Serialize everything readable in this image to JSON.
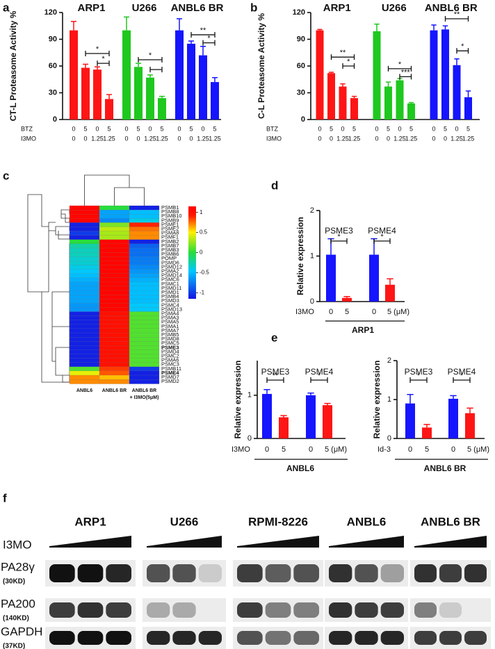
{
  "chart_data": [
    {
      "panel": "a",
      "type": "bar",
      "ylabel": "CT-L Proteasome Activity %",
      "ylim": [
        0,
        120
      ],
      "yticks": [
        0,
        30,
        60,
        90,
        120
      ],
      "series": [
        {
          "name": "ARP1",
          "color": "#ff1515",
          "values": [
            100,
            58,
            56,
            23
          ],
          "errors": [
            10,
            4,
            3,
            5
          ]
        },
        {
          "name": "U266",
          "color": "#1ec81e",
          "values": [
            100,
            59,
            47,
            24
          ],
          "errors": [
            15,
            4,
            3,
            2
          ]
        },
        {
          "name": "ANBL6 BR",
          "color": "#1515ff",
          "values": [
            100,
            85,
            72,
            42
          ],
          "errors": [
            13,
            3,
            10,
            5
          ]
        }
      ],
      "rows": [
        {
          "label": "BTZ",
          "values": [
            0,
            5,
            0,
            5,
            0,
            5,
            0,
            5,
            0,
            5,
            0,
            5
          ]
        },
        {
          "label": "I3MO",
          "values": [
            0,
            0,
            1.25,
            1.25,
            0,
            0,
            1.25,
            1.25,
            0,
            0,
            1.25,
            1.25
          ]
        }
      ],
      "brackets": [
        {
          "series": 0,
          "from": 1,
          "to": 3,
          "y": 74,
          "label": "*"
        },
        {
          "series": 0,
          "from": 2,
          "to": 3,
          "y": 63,
          "label": "*"
        },
        {
          "series": 1,
          "from": 1,
          "to": 3,
          "y": 67,
          "label": "*"
        },
        {
          "series": 1,
          "from": 2,
          "to": 3,
          "y": 56
        },
        {
          "series": 2,
          "from": 1,
          "to": 3,
          "y": 95,
          "label": "**"
        },
        {
          "series": 2,
          "from": 2,
          "to": 3,
          "y": 86,
          "label": "*"
        }
      ]
    },
    {
      "panel": "b",
      "type": "bar",
      "ylabel": "C-L Proteasome Activity %",
      "ylim": [
        0,
        120
      ],
      "yticks": [
        0,
        30,
        60,
        90,
        120
      ],
      "series": [
        {
          "name": "ARP1",
          "color": "#ff1515",
          "values": [
            100,
            52,
            37,
            24
          ],
          "errors": [
            1,
            1,
            3,
            2
          ]
        },
        {
          "name": "U266",
          "color": "#1ec81e",
          "values": [
            99,
            37,
            44,
            18
          ],
          "errors": [
            8,
            5,
            2,
            1
          ]
        },
        {
          "name": "ANBL6 BR",
          "color": "#1515ff",
          "values": [
            100,
            101,
            61,
            25
          ],
          "errors": [
            6,
            4,
            7,
            7
          ]
        }
      ],
      "rows": [
        {
          "label": "BTZ",
          "values": [
            0,
            5,
            0,
            5,
            0,
            5,
            0,
            5,
            0,
            5,
            0,
            5
          ]
        },
        {
          "label": "I3MO",
          "values": [
            0,
            0,
            1.25,
            1.25,
            0,
            0,
            1.25,
            1.25,
            0,
            0,
            1.25,
            1.25
          ]
        }
      ],
      "brackets": [
        {
          "series": 0,
          "from": 1,
          "to": 3,
          "y": 70,
          "label": "**"
        },
        {
          "series": 0,
          "from": 2,
          "to": 3,
          "y": 60,
          "label": "*"
        },
        {
          "series": 1,
          "from": 1,
          "to": 3,
          "y": 57,
          "label": "*"
        },
        {
          "series": 1,
          "from": 2,
          "to": 3,
          "y": 48,
          "label": "***"
        },
        {
          "series": 2,
          "from": 1,
          "to": 3,
          "y": 113,
          "label": "**"
        },
        {
          "series": 2,
          "from": 2,
          "to": 3,
          "y": 77,
          "label": "*"
        }
      ]
    },
    {
      "panel": "c",
      "type": "heatmap",
      "clim": [
        -1.15,
        1.15
      ],
      "cticks": [
        1,
        0.5,
        0,
        -0.5,
        -1
      ],
      "columns": [
        [
          "ANBL6"
        ],
        [
          "ANBL6 BR"
        ],
        [
          "ANBL6 BR",
          "+ I3MO(5μM)"
        ]
      ],
      "rows": [
        "PSMB1",
        "PSMB8",
        "PSMB10",
        "PSMB9",
        "PSME1",
        "PSME2",
        "PSMA8",
        "PSMF1",
        "PSMB2",
        "PSMB7",
        "PSMB3",
        "PSMB6",
        "POMP",
        "PSMD6",
        "PSMD12",
        "PSMA2",
        "PSMD14",
        "PSMC6",
        "PSMC1",
        "PSMD11",
        "PSMD1",
        "PSMB4",
        "PSMD3",
        "PSMC4",
        "PSMD13",
        "PSMA4",
        "PSMA3",
        "PSMA5",
        "PSMA1",
        "PSMA7",
        "PSMB5",
        "PSMD8",
        "PSMC5",
        "PSME3",
        "PSMD4",
        "PSMC2",
        "PSMA6",
        "PSMC3",
        "PSMB11",
        "PSME4",
        "PSMD7",
        "PSMD2"
      ],
      "bold_rows": [
        33,
        39
      ],
      "values": [
        [
          1.1,
          0,
          -1.1
        ],
        [
          1.1,
          -0.6,
          -0.5
        ],
        [
          1.1,
          -0.6,
          -0.5
        ],
        [
          1.1,
          -0.7,
          -0.4
        ],
        [
          -1.1,
          0.2,
          0.9
        ],
        [
          -1.1,
          0.35,
          0.75
        ],
        [
          -1.0,
          0.3,
          0.7
        ],
        [
          -1.1,
          0.3,
          0.7
        ],
        [
          0,
          1.1,
          -1.1
        ],
        [
          -0.25,
          1.1,
          -0.85
        ],
        [
          -0.3,
          1.1,
          -0.8
        ],
        [
          -0.3,
          1.1,
          -0.8
        ],
        [
          -0.35,
          1.1,
          -0.75
        ],
        [
          -0.35,
          1.1,
          -0.75
        ],
        [
          -0.4,
          1.1,
          -0.7
        ],
        [
          -0.45,
          1.1,
          -0.65
        ],
        [
          -0.5,
          1.1,
          -0.6
        ],
        [
          -0.55,
          1.1,
          -0.55
        ],
        [
          -0.6,
          1.1,
          -0.5
        ],
        [
          -0.6,
          1.1,
          -0.5
        ],
        [
          -0.6,
          1.1,
          -0.5
        ],
        [
          -0.6,
          1.1,
          -0.5
        ],
        [
          -0.6,
          1.1,
          -0.5
        ],
        [
          -0.65,
          1.1,
          -0.45
        ],
        [
          -0.65,
          1.1,
          -0.45
        ],
        [
          -1.1,
          1.0,
          0.1
        ],
        [
          -1.1,
          1.0,
          0.1
        ],
        [
          -1.1,
          1.0,
          0.1
        ],
        [
          -1.1,
          1.0,
          0.1
        ],
        [
          -1.1,
          1.0,
          0.1
        ],
        [
          -1.1,
          1.0,
          0.1
        ],
        [
          -1.1,
          1.0,
          0.1
        ],
        [
          -1.1,
          1.0,
          0.1
        ],
        [
          -1.1,
          1.0,
          0.1
        ],
        [
          -1.1,
          1.0,
          0.1
        ],
        [
          -1.1,
          1.0,
          0.1
        ],
        [
          -1.1,
          1.0,
          0.1
        ],
        [
          -1.1,
          1.0,
          0.1
        ],
        [
          0.1,
          0.85,
          -1.0
        ],
        [
          0.45,
          0.8,
          -1.1
        ],
        [
          0.7,
          0.6,
          -1.1
        ],
        [
          0.7,
          0.7,
          -1.1
        ]
      ]
    },
    {
      "panel": "d",
      "type": "bar",
      "ylabel": "Relative expression",
      "ylim": [
        0,
        2
      ],
      "yticks": [
        0,
        1,
        2
      ],
      "colors": [
        "#1515ff",
        "#ff1515"
      ],
      "series": [
        {
          "name": "PSME3",
          "values": [
            1.03,
            0.08
          ],
          "errors": [
            0.35,
            0.03
          ]
        },
        {
          "name": "PSME4",
          "values": [
            1.03,
            0.37
          ],
          "errors": [
            0.35,
            0.13
          ]
        }
      ],
      "rows": [
        {
          "label": "I3MO",
          "values": [
            0,
            5,
            0,
            {
              "value": 5,
              "label": "5 (μM)"
            }
          ]
        }
      ],
      "footer": "ARP1",
      "brackets": [
        {
          "series": 0,
          "from": 0,
          "to": 1,
          "y": 1.33,
          "label": "*"
        },
        {
          "series": 1,
          "from": 0,
          "to": 1,
          "y": 1.33,
          "label": "*"
        }
      ]
    },
    {
      "panel": "e",
      "type": "bar",
      "ylabel": "Relative expression",
      "ylim": [
        0,
        1.8
      ],
      "yticks": [
        0,
        1
      ],
      "colors": [
        "#1515ff",
        "#ff1515"
      ],
      "series": [
        {
          "name": "PSME3",
          "values": [
            1.03,
            0.49
          ],
          "errors": [
            0.1,
            0.04
          ]
        },
        {
          "name": "PSME4",
          "values": [
            1.0,
            0.77
          ],
          "errors": [
            0.05,
            0.04
          ]
        }
      ],
      "rows": [
        {
          "label": "I3MO",
          "values": [
            0,
            5,
            0,
            {
              "value": 5,
              "label": "5 (μM)"
            }
          ]
        }
      ],
      "footer": "ANBL6",
      "brackets": [
        {
          "series": 0,
          "from": 0,
          "to": 1,
          "y": 1.35,
          "label": "**"
        },
        {
          "series": 1,
          "from": 0,
          "to": 1,
          "y": 1.35,
          "label": "*"
        }
      ]
    },
    {
      "type": "bar",
      "ylabel": "Relative expression",
      "ylim": [
        0,
        2
      ],
      "yticks": [
        0,
        1,
        2
      ],
      "colors": [
        "#1515ff",
        "#ff1515"
      ],
      "series": [
        {
          "name": "PSME3",
          "values": [
            0.9,
            0.28
          ],
          "errors": [
            0.23,
            0.08
          ]
        },
        {
          "name": "PSME4",
          "values": [
            1.02,
            0.65
          ],
          "errors": [
            0.08,
            0.13
          ]
        }
      ],
      "rows": [
        {
          "label": "Id-3",
          "values": [
            0,
            5,
            0,
            {
              "value": 5,
              "label": "5 (μM)"
            }
          ]
        }
      ],
      "footer": "ANBL6 BR",
      "brackets": [
        {
          "series": 0,
          "from": 0,
          "to": 1,
          "y": 1.5,
          "label": "*"
        },
        {
          "series": 1,
          "from": 0,
          "to": 1,
          "y": 1.5,
          "label": "*"
        }
      ]
    }
  ],
  "blot": {
    "panel": "f",
    "groups": [
      "ARP1",
      "U266",
      "RPMI-8226",
      "ANBL6",
      "ANBL6 BR"
    ],
    "treatment": "I3MO",
    "rows": [
      {
        "name": "PA28γ",
        "size": "(30KD)",
        "intensity": [
          [
            1,
            1,
            0.9
          ],
          [
            0.7,
            0.7,
            0.15
          ],
          [
            0.8,
            0.65,
            0.7
          ],
          [
            0.85,
            0.7,
            0.35
          ],
          [
            0.85,
            0.8,
            0.85
          ]
        ]
      },
      {
        "name": "PA200",
        "size": "(140KD)",
        "intensity": [
          [
            0.8,
            0.85,
            0.8
          ],
          [
            0.3,
            0.3,
            0
          ],
          [
            0.8,
            0.5,
            0.5
          ],
          [
            0.85,
            0.8,
            0.8
          ],
          [
            0.5,
            0.15,
            0
          ]
        ]
      },
      {
        "name": "GAPDH",
        "size": "(37KD)",
        "intensity": [
          [
            1,
            1,
            1
          ],
          [
            0.9,
            0.9,
            0.9
          ],
          [
            0.7,
            0.55,
            0.6
          ],
          [
            0.9,
            0.9,
            0.9
          ],
          [
            0.8,
            0.8,
            0.8
          ]
        ]
      }
    ]
  }
}
